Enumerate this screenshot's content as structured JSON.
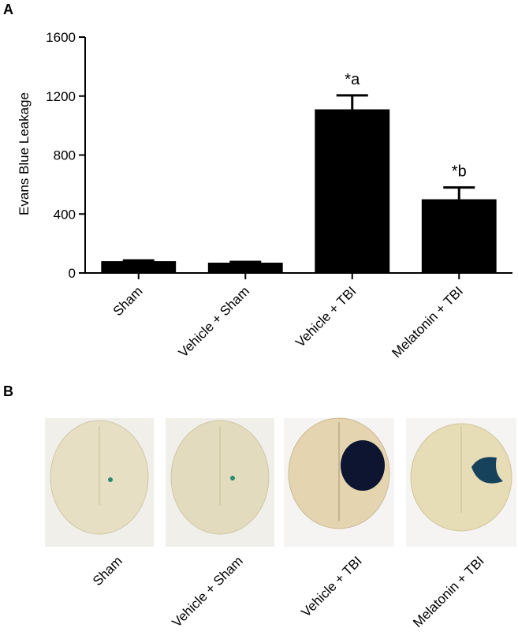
{
  "chart_data": {
    "type": "bar",
    "panel_label": "A",
    "y_label": "Evans Blue Leakage",
    "categories": [
      "Sham",
      "Vehicle + Sham",
      "Vehicle + TBI",
      "Melatonin + TBI"
    ],
    "values": [
      80,
      70,
      1110,
      500
    ],
    "errors": [
      5,
      5,
      95,
      80
    ],
    "color": "#000000",
    "annotations": [
      {
        "category": "Vehicle + TBI",
        "text": "*a"
      },
      {
        "category": "Melatonin + TBI",
        "text": "*b"
      }
    ],
    "ylim": [
      0,
      1600
    ],
    "yticks": [
      0,
      400,
      800,
      1200,
      1600
    ],
    "grid": false
  },
  "panel_b": {
    "panel_label": "B",
    "captions": [
      "Sham",
      "Vehicle + Sham",
      "Vehicle + TBI",
      "Melatonin + TBI"
    ]
  }
}
